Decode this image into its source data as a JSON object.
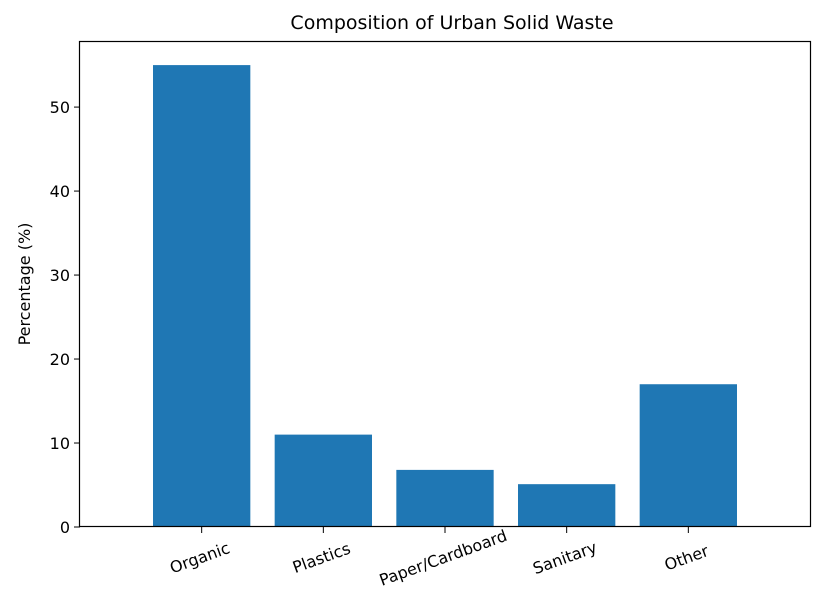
{
  "chart_data": {
    "type": "bar",
    "title": "Composition of Urban Solid Waste",
    "xlabel": "",
    "ylabel": "Percentage (%)",
    "categories": [
      "Organic",
      "Plastics",
      "Paper/Cardboard",
      "Sanitary",
      "Other"
    ],
    "values": [
      55,
      11,
      6.8,
      5.1,
      17
    ],
    "ylim": [
      0,
      57.75
    ],
    "yticks": [
      "0",
      "10",
      "20",
      "30",
      "40",
      "50"
    ],
    "grid": false,
    "x_tick_rotation_deg": 20,
    "bar_color": "#1f77b4"
  }
}
